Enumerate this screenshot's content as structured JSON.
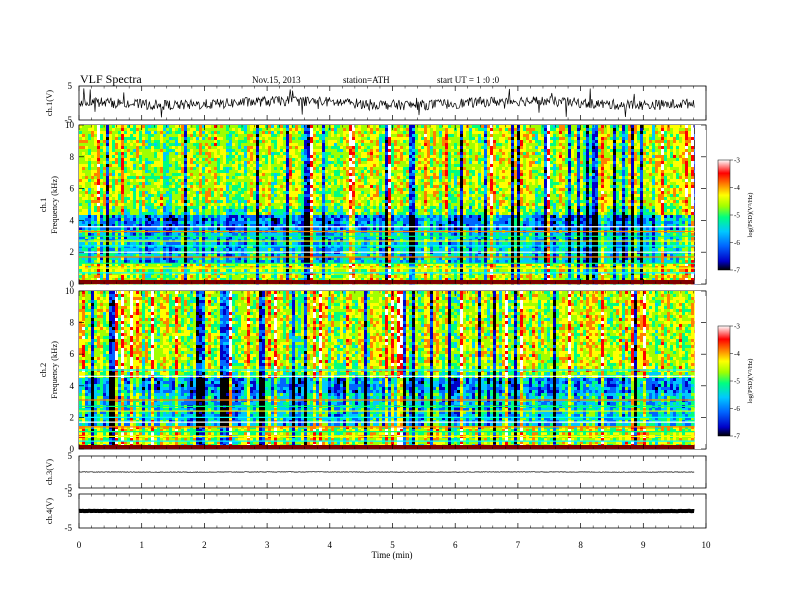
{
  "header": {
    "title": "VLF Spectra",
    "date": "Nov.15, 2013",
    "station": "station=ATH",
    "start": "start  UT =  1 :0 :0"
  },
  "chart_data": [
    {
      "type": "line",
      "panel": "ch1-waveform",
      "ylabel": "ch.1(V)",
      "ylim": [
        -5,
        5
      ],
      "yticks": [
        5,
        -5
      ],
      "description_values": {
        "baseline_v": 0,
        "noise_level_v": 1.5,
        "spikes": true
      },
      "color": "#000000"
    },
    {
      "type": "heatmap",
      "panel": "ch1-spectrogram",
      "ylabel_channel": "ch.1",
      "ylabel": "Frequency  (kHz)",
      "ylim": [
        0,
        10
      ],
      "yticks": [
        0,
        2,
        4,
        6,
        8,
        10
      ],
      "colorbar": {
        "label": "log(PSD)(V²/Hz)",
        "ticks": [
          -3,
          -4,
          -5,
          -6,
          -7
        ],
        "range": [
          -7,
          -3
        ],
        "colormap": [
          "#000000",
          "#0000c8",
          "#0066ff",
          "#00c8ff",
          "#00ff80",
          "#a0ff00",
          "#ffff00",
          "#ff8000",
          "#ff0000",
          "#ffffff"
        ]
      }
    },
    {
      "type": "heatmap",
      "panel": "ch2-spectrogram",
      "ylabel_channel": "ch.2",
      "ylabel": "Frequency  (kHz)",
      "ylim": [
        0,
        10
      ],
      "yticks": [
        0,
        2,
        4,
        6,
        8,
        10
      ],
      "colorbar": {
        "label": "log(PSD)(V²/Hz)",
        "ticks": [
          -3,
          -4,
          -5,
          -6,
          -7
        ],
        "range": [
          -7,
          -3
        ]
      }
    },
    {
      "type": "line",
      "panel": "ch3-waveform",
      "ylabel": "ch.3(V)",
      "ylim": [
        -5,
        5
      ],
      "yticks": [
        5,
        -5
      ],
      "description_values": {
        "baseline_v": 0
      },
      "color": "#000000"
    },
    {
      "type": "line",
      "panel": "ch4-waveform",
      "ylabel": "ch.4(V)",
      "ylim": [
        -5,
        5
      ],
      "yticks": [
        5,
        -5
      ],
      "description_values": {
        "baseline_v": 0,
        "noise_level_v": 0.4
      },
      "color": "#000000"
    }
  ],
  "xaxis": {
    "label": "Time  (min)",
    "xlim": [
      0,
      10
    ],
    "ticks": [
      "0",
      "1",
      "2",
      "3",
      "4",
      "5",
      "6",
      "7",
      "8",
      "9",
      "10"
    ],
    "data_end_min": 9.82
  }
}
